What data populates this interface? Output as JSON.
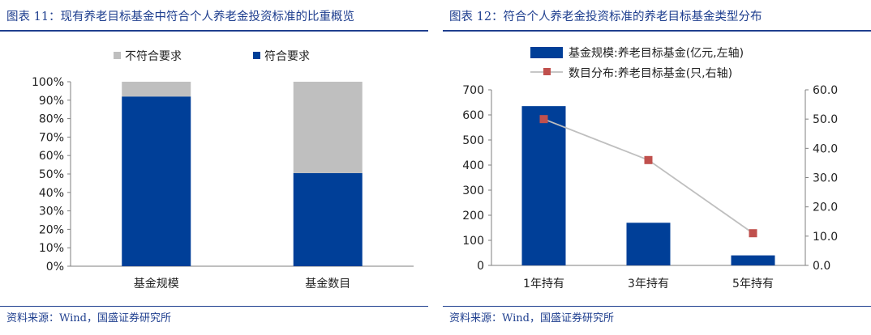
{
  "left": {
    "figure_title": "图表 11：现有养老目标基金中符合个人养老金投资标准的比重概览",
    "source": "资料来源：Wind，国盛证券研究所"
  },
  "right": {
    "figure_title": "图表 12：符合个人养老金投资标准的养老目标基金类型分布",
    "source": "资料来源：Wind，国盛证券研究所"
  },
  "colors": {
    "blue": "#003f98",
    "gray": "#bfbfbf",
    "line": "#bfbfbf",
    "marker": "#c0504d",
    "title": "#1f3f8f"
  },
  "chart_data": [
    {
      "type": "bar",
      "stacked": true,
      "percent": true,
      "categories": [
        "基金规模",
        "基金数目"
      ],
      "series": [
        {
          "name": "符合要求",
          "values": [
            92,
            50.5
          ],
          "color": "#003f98"
        },
        {
          "name": "不符合要求",
          "values": [
            8,
            49.5
          ],
          "color": "#bfbfbf"
        }
      ],
      "ylim": [
        0,
        100
      ],
      "yticks": [
        "0%",
        "10%",
        "20%",
        "30%",
        "40%",
        "50%",
        "60%",
        "70%",
        "80%",
        "90%",
        "100%"
      ],
      "legend": {
        "placement": "top",
        "entries": [
          "不符合要求",
          "符合要求"
        ]
      },
      "grid": false
    },
    {
      "type": "bar",
      "combo": "bar-line",
      "categories": [
        "1年持有",
        "3年持有",
        "5年持有"
      ],
      "series": [
        {
          "name": "基金规模:养老目标基金(亿元,左轴)",
          "kind": "bar",
          "axis": "left",
          "values": [
            635,
            170,
            40
          ],
          "color": "#003f98"
        },
        {
          "name": "数目分布:养老目标基金(只,右轴)",
          "kind": "line",
          "axis": "right",
          "values": [
            50,
            36,
            11
          ],
          "color": "#bfbfbf",
          "marker_color": "#c0504d"
        }
      ],
      "ylim_left": [
        0,
        700
      ],
      "yticks_left": [
        "0",
        "100",
        "200",
        "300",
        "400",
        "500",
        "600",
        "700"
      ],
      "ylim_right": [
        0,
        60
      ],
      "yticks_right": [
        "0.0",
        "10.0",
        "20.0",
        "30.0",
        "40.0",
        "50.0",
        "60.0"
      ],
      "legend": {
        "placement": "top"
      },
      "grid": false
    }
  ]
}
